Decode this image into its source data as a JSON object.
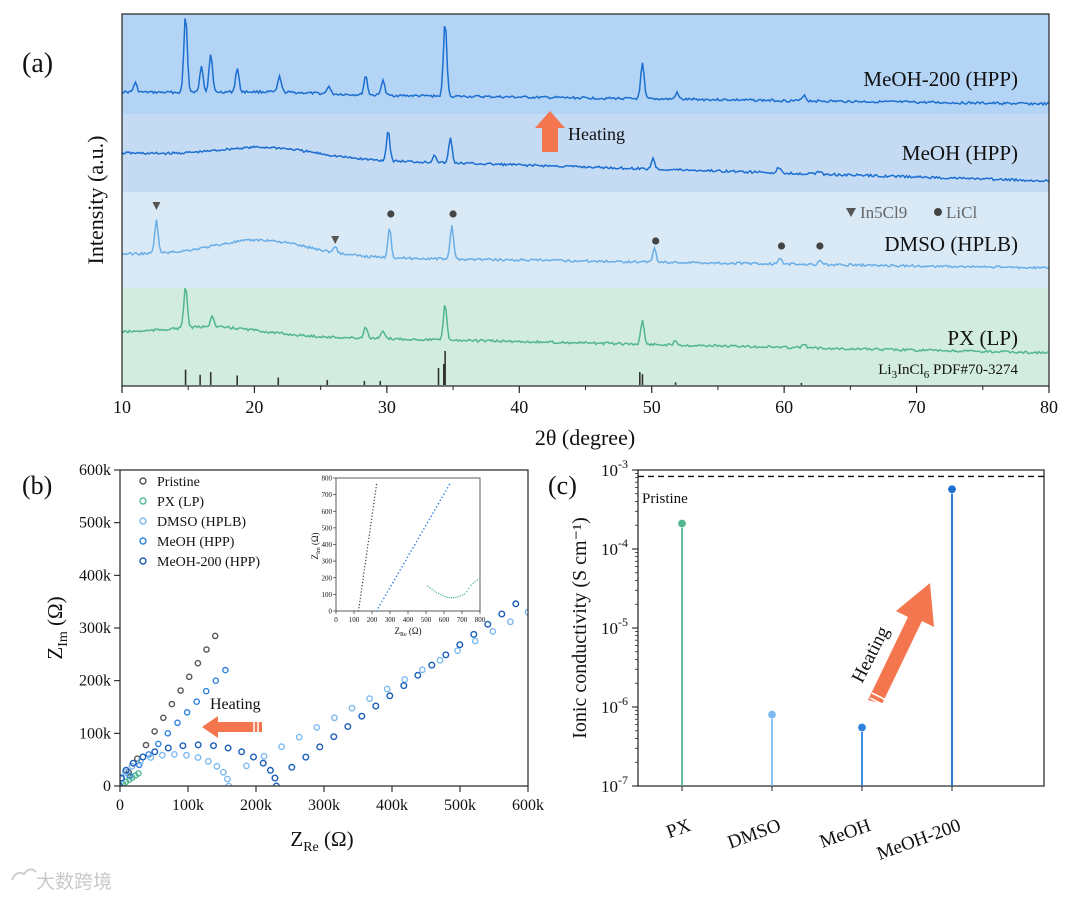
{
  "watermark": "大数跨境",
  "chart_data": [
    {
      "panel": "a",
      "panel_label": "(a)",
      "type": "line",
      "xlabel": "2θ (degree)",
      "ylabel": "Intensity (a.u.)",
      "xlim": [
        10,
        80
      ],
      "xticks": [
        10,
        20,
        30,
        40,
        50,
        60,
        70,
        80
      ],
      "series": [
        {
          "name": "MeOH-200 (HPP)",
          "color": "#1c6fd0",
          "band": "#b2d4f5",
          "peaks": [
            [
              11.0,
              0.12
            ],
            [
              14.8,
              1.0
            ],
            [
              16.0,
              0.35
            ],
            [
              16.7,
              0.5
            ],
            [
              18.7,
              0.3
            ],
            [
              21.9,
              0.2
            ],
            [
              25.6,
              0.1
            ],
            [
              28.4,
              0.25
            ],
            [
              29.7,
              0.2
            ],
            [
              34.4,
              0.95
            ],
            [
              49.3,
              0.45
            ],
            [
              51.9,
              0.08
            ],
            [
              61.5,
              0.08
            ]
          ]
        },
        {
          "name": "MeOH (HPP)",
          "color": "#1c6fd0",
          "band": "#c7ddf4",
          "peaks": [
            [
              30.1,
              0.55
            ],
            [
              33.6,
              0.15
            ],
            [
              34.8,
              0.45
            ],
            [
              50.1,
              0.2
            ],
            [
              59.6,
              0.1
            ],
            [
              62.6,
              0.06
            ]
          ]
        },
        {
          "name": "DMSO (HPLB)",
          "color": "#6aaee8",
          "band": "#d9eaf7",
          "peaks": [
            [
              12.6,
              0.6
            ],
            [
              26.1,
              0.12
            ],
            [
              30.2,
              0.55
            ],
            [
              34.9,
              0.6
            ],
            [
              50.2,
              0.25
            ],
            [
              59.7,
              0.1
            ],
            [
              62.7,
              0.08
            ]
          ],
          "markers": [
            {
              "x": 12.6,
              "type": "In5Cl9"
            },
            {
              "x": 26.1,
              "type": "In5Cl9"
            },
            {
              "x": 30.3,
              "type": "LiCl"
            },
            {
              "x": 35.0,
              "type": "LiCl"
            },
            {
              "x": 50.3,
              "type": "LiCl"
            },
            {
              "x": 59.8,
              "type": "LiCl"
            },
            {
              "x": 62.7,
              "type": "LiCl"
            }
          ]
        },
        {
          "name": "PX (LP)",
          "color": "#52b691",
          "band": "#d3ede2",
          "peaks": [
            [
              14.8,
              0.7
            ],
            [
              16.8,
              0.2
            ],
            [
              28.4,
              0.2
            ],
            [
              29.7,
              0.12
            ],
            [
              34.4,
              0.6
            ],
            [
              49.3,
              0.4
            ],
            [
              51.8,
              0.08
            ],
            [
              61.5,
              0.06
            ]
          ]
        }
      ],
      "reference": {
        "name_main": "Li",
        "sub1": "3",
        "mid": "InCl",
        "sub2": "6",
        "name_rest": " PDF#70-3274",
        "sticks": [
          [
            14.8,
            0.45
          ],
          [
            15.9,
            0.3
          ],
          [
            16.7,
            0.38
          ],
          [
            18.7,
            0.28
          ],
          [
            21.8,
            0.22
          ],
          [
            25.5,
            0.15
          ],
          [
            28.3,
            0.12
          ],
          [
            29.5,
            0.12
          ],
          [
            33.9,
            0.5
          ],
          [
            34.3,
            0.62
          ],
          [
            34.4,
            1.0
          ],
          [
            49.1,
            0.38
          ],
          [
            49.3,
            0.32
          ],
          [
            51.8,
            0.08
          ],
          [
            61.3,
            0.06
          ]
        ]
      },
      "legend": {
        "triangle": "In5Cl9",
        "circle": "LiCl"
      },
      "annotation": "Heating"
    },
    {
      "panel": "b",
      "panel_label": "(b)",
      "type": "scatter",
      "xlabel": "Z",
      "xlabel_sub": "Re",
      "xlabel_unit": " (Ω)",
      "ylabel": "Z",
      "ylabel_sub": "Im",
      "ylabel_unit": " (Ω)",
      "xlim": [
        0,
        600000
      ],
      "ylim": [
        0,
        600000
      ],
      "xtick_labels": [
        "0",
        "100k",
        "200k",
        "300k",
        "400k",
        "500k",
        "600k"
      ],
      "ytick_labels": [
        "0",
        "100k",
        "200k",
        "300k",
        "400k",
        "500k",
        "600k"
      ],
      "series": [
        {
          "name": "Pristine",
          "color": "#555555"
        },
        {
          "name": "PX (LP)",
          "color": "#52b691"
        },
        {
          "name": "DMSO (HPLB)",
          "color": "#7dbaf0"
        },
        {
          "name": "MeOH (HPP)",
          "color": "#2e82dc"
        },
        {
          "name": "MeOH-200 (HPP)",
          "color": "#1c5fb8"
        }
      ],
      "annotation": "Heating",
      "inset": {
        "xlim": [
          0,
          800
        ],
        "ylim": [
          0,
          800
        ],
        "xtick_labels": [
          "0",
          "100",
          "200",
          "300",
          "400",
          "500",
          "600",
          "700",
          "800"
        ],
        "ytick_labels": [
          "0",
          "100",
          "200",
          "300",
          "400",
          "500",
          "600",
          "700",
          "800"
        ],
        "xlabel": "Z",
        "xlabel_sub": "Re",
        "xlabel_unit": " (Ω)",
        "ylabel": "Z",
        "ylabel_sub": "Im",
        "ylabel_unit": " (Ω)"
      }
    },
    {
      "panel": "c",
      "panel_label": "(c)",
      "type": "bar",
      "yscale": "log",
      "ylabel": "Ionic conductivity (S cm⁻¹)",
      "ylim": [
        1e-07,
        0.001
      ],
      "ytick_base": "10",
      "ytick_exponents": [
        "-7",
        "-6",
        "-5",
        "-4",
        "-3"
      ],
      "categories": [
        "PX",
        "DMSO",
        "MeOH",
        "MeOH-200"
      ],
      "values": [
        0.00021,
        8e-07,
        5.5e-07,
        0.00057
      ],
      "colors": [
        "#52b691",
        "#7dbaf0",
        "#2e82dc",
        "#1c6fd0"
      ],
      "reference_line": {
        "name": "Pristine",
        "value": 0.00083
      },
      "annotation": "Heating"
    }
  ]
}
